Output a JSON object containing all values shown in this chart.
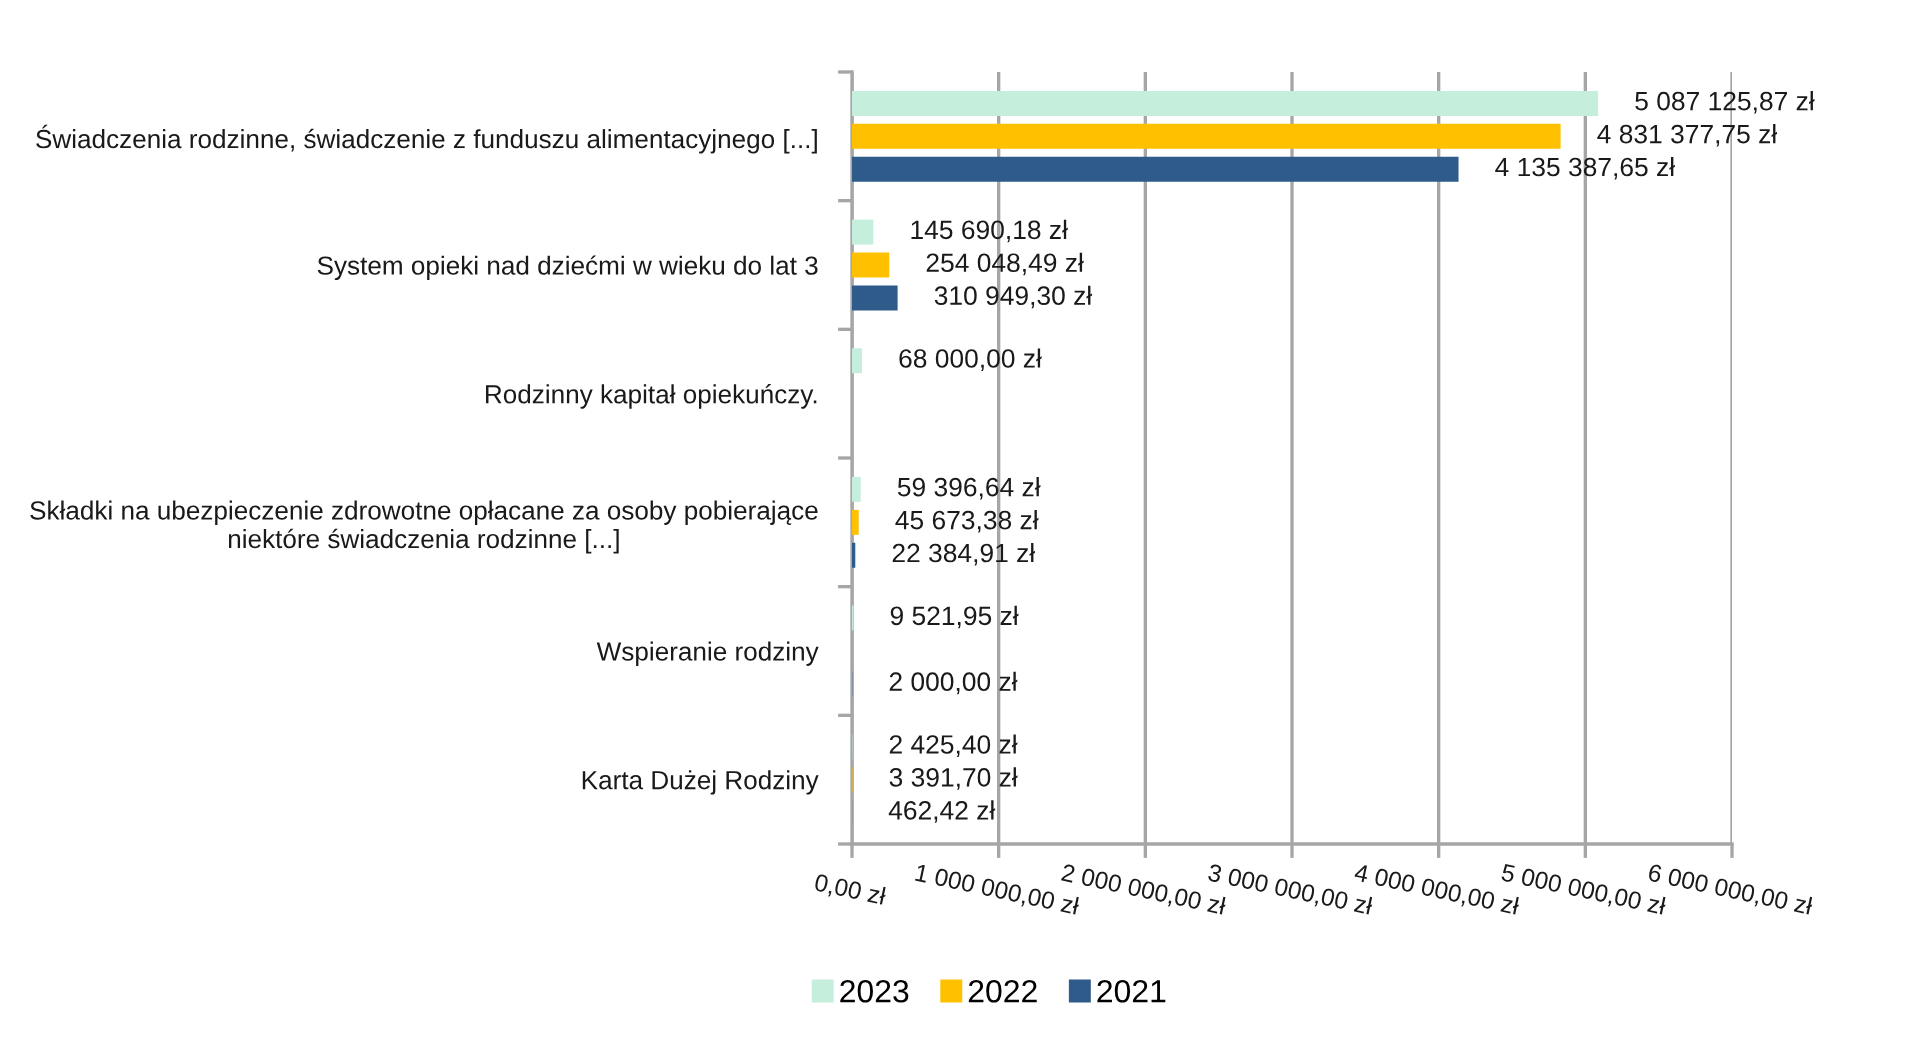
{
  "chart_data": {
    "type": "bar",
    "orientation": "horizontal",
    "categories": [
      "Świadczenia rodzinne, świadczenie z funduszu alimentacyjnego [...]",
      "System opieki nad dziećmi w wieku do lat 3",
      "Rodzinny kapitał opiekuńczy.",
      "Składki na ubezpieczenie zdrowotne opłacane za osoby pobierające\nniektóre świadczenia rodzinne [...]",
      "Wspieranie rodziny",
      "Karta Dużej Rodziny"
    ],
    "series": [
      {
        "name": "2023",
        "color": "#c5eedc",
        "values": [
          5087125.87,
          145690.18,
          68000.0,
          59396.64,
          9521.95,
          2425.4
        ],
        "value_labels": [
          "5 087 125,87 zł",
          "145 690,18 zł",
          "68 000,00 zł",
          "59 396,64 zł",
          "9 521,95 zł",
          "2 425,40 zł"
        ]
      },
      {
        "name": "2022",
        "color": "#ffc000",
        "values": [
          4831377.75,
          254048.49,
          null,
          45673.38,
          null,
          3391.7
        ],
        "value_labels": [
          "4 831 377,75 zł",
          "254 048,49 zł",
          null,
          "45 673,38 zł",
          null,
          "3 391,70 zł"
        ]
      },
      {
        "name": "2021",
        "color": "#2e5b8a",
        "values": [
          4135387.65,
          310949.3,
          null,
          22384.91,
          2000.0,
          462.42
        ],
        "value_labels": [
          "4 135 387,65 zł",
          "310 949,30 zł",
          null,
          "22 384,91 zł",
          "2 000,00 zł",
          "462,42 zł"
        ]
      }
    ],
    "xlim": [
      0,
      6000000
    ],
    "xticks": [
      {
        "value": 0,
        "label": "0,00 zł"
      },
      {
        "value": 1000000,
        "label": "1 000 000,00 zł"
      },
      {
        "value": 2000000,
        "label": "2 000 000,00 zł"
      },
      {
        "value": 3000000,
        "label": "3 000 000,00 zł"
      },
      {
        "value": 4000000,
        "label": "4 000 000,00 zł"
      },
      {
        "value": 5000000,
        "label": "5 000 000,00 zł"
      },
      {
        "value": 6000000,
        "label": "6 000 000,00 zł"
      }
    ],
    "grid": "x",
    "legend": "bottom"
  }
}
